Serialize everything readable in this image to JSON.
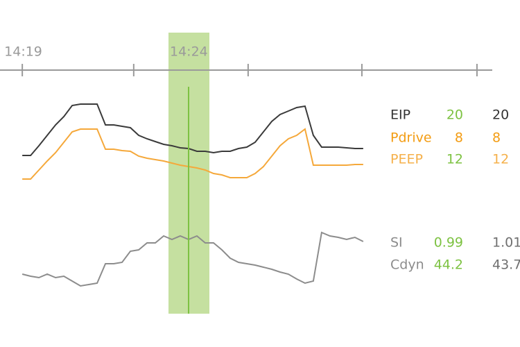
{
  "chart_data": {
    "type": "line",
    "x": [
      859,
      859.25,
      859.5,
      859.75,
      860,
      860.25,
      860.5,
      860.75,
      861,
      861.25,
      861.5,
      861.75,
      862,
      862.25,
      862.5,
      862.75,
      863,
      863.25,
      863.5,
      863.75,
      864,
      864.25,
      864.5,
      864.75,
      865,
      865.25,
      865.5,
      865.75,
      866,
      866.25,
      866.5,
      866.75,
      867,
      867.25,
      867.5,
      867.75,
      868,
      868.25,
      868.5,
      868.75,
      869,
      869.25
    ],
    "xlim": [
      858.33,
      873.13
    ],
    "xticks": [
      {
        "value": 859,
        "label": "14:19"
      },
      {
        "value": 862.35,
        "label": null
      },
      {
        "value": 865.79,
        "label": null
      },
      {
        "value": 869.21,
        "label": null
      },
      {
        "value": 872.67,
        "label": null
      }
    ],
    "cursor": {
      "x": 864,
      "label": "14:24",
      "color": "#7dc242"
    },
    "ylim": [
      0,
      160
    ],
    "y2lim": [
      0,
      120
    ],
    "series": [
      {
        "color": "#3a3a3a",
        "values": [
          76,
          76,
          90,
          105,
          120,
          132,
          148,
          150,
          150,
          150,
          120,
          120,
          118,
          116,
          105,
          100,
          96,
          92,
          90,
          87,
          86,
          82,
          82,
          80,
          82,
          82,
          86,
          88,
          95,
          110,
          125,
          135,
          140,
          145,
          147,
          105,
          88,
          88,
          88,
          87,
          86,
          86
        ]
      },
      {
        "color": "#f5a83a",
        "values": [
          42,
          42,
          55,
          68,
          80,
          95,
          110,
          114,
          114,
          114,
          85,
          85,
          83,
          82,
          75,
          72,
          70,
          68,
          65,
          62,
          60,
          58,
          55,
          50,
          48,
          44,
          44,
          44,
          50,
          60,
          75,
          90,
          100,
          105,
          114,
          62,
          62,
          62,
          62,
          62,
          63,
          63
        ]
      },
      {
        "color": "#8c8c8c",
        "axis": "y2",
        "values": [
          35,
          32,
          30,
          35,
          30,
          32,
          25,
          18,
          20,
          22,
          50,
          50,
          52,
          68,
          70,
          80,
          80,
          90,
          85,
          90,
          85,
          90,
          80,
          80,
          70,
          58,
          52,
          50,
          48,
          45,
          42,
          38,
          35,
          28,
          22,
          25,
          95,
          90,
          88,
          85,
          88,
          82
        ]
      }
    ]
  },
  "readouts": {
    "rows": [
      {
        "label": "EIP",
        "cursor": "20",
        "current": "20",
        "color": "#333333",
        "current_color": "#333333"
      },
      {
        "label": "Pdrive",
        "cursor": "8",
        "current": "8",
        "color": "#f39c12",
        "cursor_color": "#f39c12",
        "current_color": "#f39c12"
      },
      {
        "label": "PEEP",
        "cursor": "12",
        "current": "12",
        "color": "#f5b04a",
        "current_color": "#f5b04a"
      },
      {
        "label": "SI",
        "cursor": "0.99",
        "current": "1.01",
        "color": "#8c8c8c",
        "current_color": "#6f6f6f"
      },
      {
        "label": "Cdyn",
        "cursor": "44.2",
        "current": "43.7",
        "color": "#8c8c8c",
        "current_color": "#6f6f6f"
      }
    ],
    "cursor_color": "#7dc242"
  }
}
